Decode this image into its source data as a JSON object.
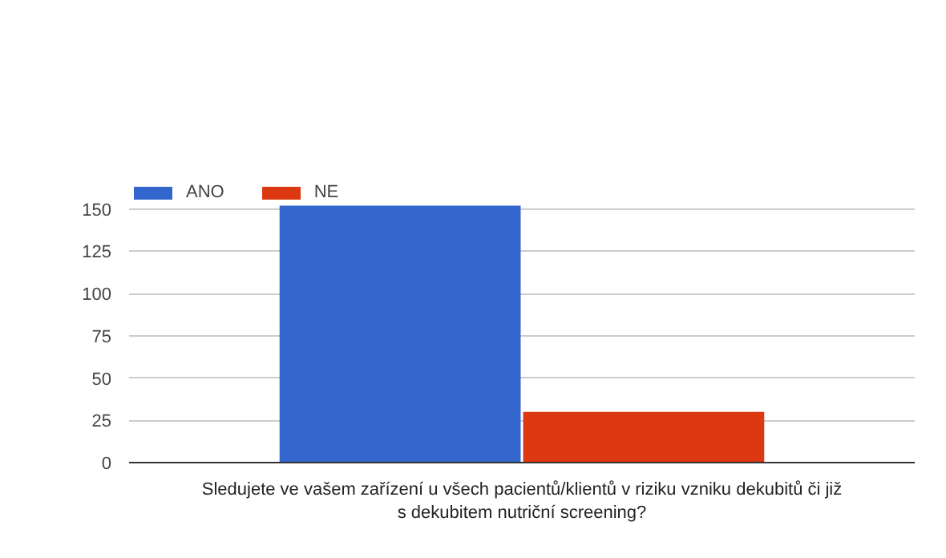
{
  "chart_data": {
    "type": "bar",
    "categories": [
      "Sledujete ve vašem zařízení u všech pacientů/klientů v riziku vzniku dekubitů či již s dekubitem nutriční screening?"
    ],
    "series": [
      {
        "name": "ANO",
        "color": "#3366cc",
        "values": [
          152
        ]
      },
      {
        "name": "NE",
        "color": "#dc3912",
        "values": [
          30
        ]
      }
    ],
    "ylim": [
      0,
      165
    ],
    "yticks": [
      0,
      25,
      50,
      75,
      100,
      125,
      150
    ],
    "grid": "y",
    "legend": "top left"
  }
}
